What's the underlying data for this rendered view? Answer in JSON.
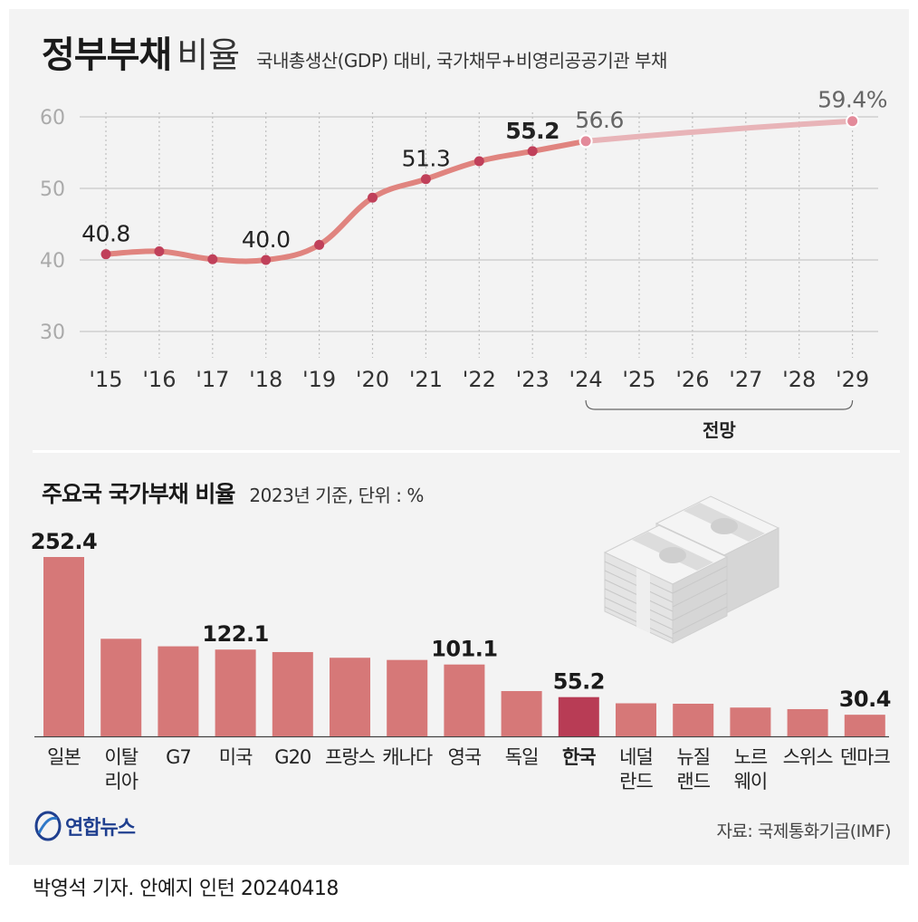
{
  "title": {
    "main": "정부부채",
    "light": "비율",
    "subtitle": "국내총생산(GDP) 대비, 국가채무+비영리공공기관 부채"
  },
  "colors": {
    "line_actual": "#e0847f",
    "line_forecast": "#e8b4b8",
    "point_actual": "#c0405a",
    "point_forecast": "#e38a9a",
    "bar": "#d67878",
    "bar_highlight": "#b83c55",
    "grid": "#c8c8c8",
    "axis_text": "#aaaaaa",
    "panel": "#f3f3f3"
  },
  "chart_data": [
    {
      "type": "line",
      "title": "정부부채 비율",
      "subtitle": "국내총생산(GDP) 대비, 국가채무+비영리공공기관 부채",
      "categories": [
        "'15",
        "'16",
        "'17",
        "'18",
        "'19",
        "'20",
        "'21",
        "'22",
        "'23",
        "'24",
        "'25",
        "'26",
        "'27",
        "'28",
        "'29"
      ],
      "values": [
        40.8,
        41.2,
        40.1,
        40.0,
        42.1,
        48.7,
        51.3,
        53.8,
        55.2,
        56.6,
        null,
        null,
        null,
        null,
        59.4
      ],
      "forecast_from_index": 9,
      "labels": [
        {
          "index": 0,
          "text": "40.8",
          "bold": false
        },
        {
          "index": 3,
          "text": "40.0",
          "bold": false
        },
        {
          "index": 6,
          "text": "51.3",
          "bold": false
        },
        {
          "index": 8,
          "text": "55.2",
          "bold": true
        },
        {
          "index": 9,
          "text": "56.6",
          "bold": false,
          "forecast": true
        },
        {
          "index": 14,
          "text": "59.4%",
          "bold": false,
          "forecast": true
        }
      ],
      "ylim": [
        30,
        60
      ],
      "yticks": [
        "30",
        "40",
        "50",
        "60"
      ],
      "forecast_label": "전망",
      "grid": true
    },
    {
      "type": "bar",
      "title": "주요국 국가부채 비율",
      "subtitle": "2023년 기준, 단위 : %",
      "categories": [
        [
          "일본"
        ],
        [
          "이탈",
          "리아"
        ],
        [
          "G7"
        ],
        [
          "미국"
        ],
        [
          "G20"
        ],
        [
          "프랑스"
        ],
        [
          "캐나다"
        ],
        [
          "영국"
        ],
        [
          "독일"
        ],
        [
          "한국"
        ],
        [
          "네덜",
          "란드"
        ],
        [
          "뉴질",
          "랜드"
        ],
        [
          "노르",
          "웨이"
        ],
        [
          "스위스"
        ],
        [
          "덴마크"
        ]
      ],
      "values": [
        252.4,
        137.3,
        126.7,
        122.1,
        118.6,
        110.6,
        107.5,
        101.1,
        63.7,
        55.2,
        46.5,
        45.9,
        40.5,
        38.3,
        30.4
      ],
      "value_labels": {
        "0": "252.4",
        "3": "122.1",
        "7": "101.1",
        "9": "55.2",
        "14": "30.4"
      },
      "highlight_index": 9
    }
  ],
  "logo": {
    "text": "연합뉴스"
  },
  "source": "자료: 국제통화기금(IMF)",
  "credit": "박영석 기자. 안예지 인턴  20240418"
}
